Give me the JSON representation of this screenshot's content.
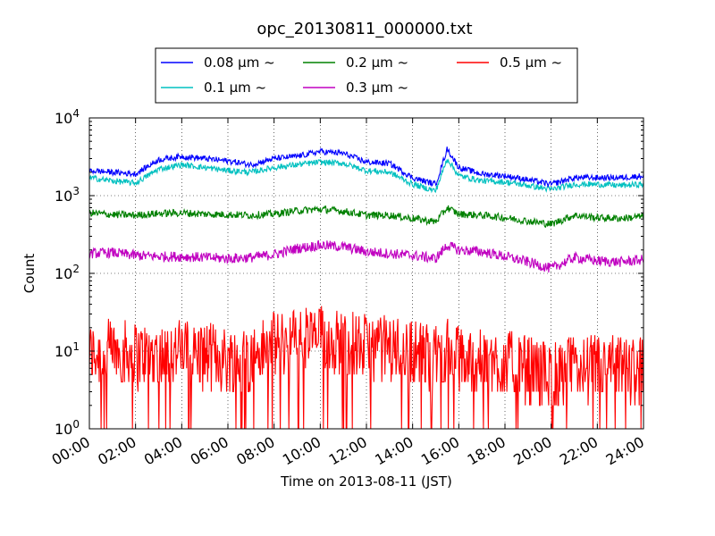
{
  "chart_data": {
    "type": "line",
    "title": "opc_20130811_000000.txt",
    "xlabel": "Time on 2013-08-11 (JST)",
    "ylabel": "Count",
    "yscale": "log",
    "ylim": [
      1,
      10000
    ],
    "xlim": [
      "00:00",
      "24:00"
    ],
    "grid": true,
    "legend_position": "top-center",
    "x_tick_labels": [
      "00:00",
      "02:00",
      "04:00",
      "06:00",
      "08:00",
      "10:00",
      "12:00",
      "14:00",
      "16:00",
      "18:00",
      "20:00",
      "22:00",
      "24:00"
    ],
    "y_tick_labels": [
      {
        "base": "10",
        "exp": "0"
      },
      {
        "base": "10",
        "exp": "1"
      },
      {
        "base": "10",
        "exp": "2"
      },
      {
        "base": "10",
        "exp": "3"
      },
      {
        "base": "10",
        "exp": "4"
      }
    ],
    "x_hours": [
      0,
      1,
      2,
      3,
      4,
      5,
      6,
      7,
      8,
      9,
      10,
      11,
      12,
      13,
      14,
      15,
      15.5,
      16,
      17,
      18,
      19,
      20,
      21,
      22,
      23,
      24
    ],
    "series": [
      {
        "name": "0.08 μm ~",
        "color": "#0000ff",
        "noise": 0.04,
        "values": [
          2100,
          2000,
          1900,
          2900,
          3200,
          3000,
          2800,
          2500,
          3000,
          3200,
          3700,
          3500,
          2700,
          2600,
          1700,
          1400,
          4000,
          2300,
          1900,
          1800,
          1600,
          1400,
          1700,
          1700,
          1700,
          1800
        ]
      },
      {
        "name": "0.1 μm ~",
        "color": "#00c0c0",
        "noise": 0.04,
        "values": [
          1700,
          1550,
          1450,
          2200,
          2500,
          2300,
          2100,
          2000,
          2300,
          2500,
          2700,
          2600,
          2100,
          2000,
          1400,
          1150,
          3000,
          1800,
          1550,
          1500,
          1350,
          1200,
          1400,
          1400,
          1350,
          1400
        ]
      },
      {
        "name": "0.2 μm ~",
        "color": "#008000",
        "noise": 0.05,
        "values": [
          600,
          570,
          560,
          590,
          600,
          580,
          570,
          560,
          580,
          640,
          670,
          630,
          560,
          560,
          510,
          460,
          700,
          580,
          560,
          520,
          470,
          430,
          560,
          520,
          510,
          540
        ]
      },
      {
        "name": "0.3 μm ~",
        "color": "#c000c0",
        "noise": 0.07,
        "values": [
          180,
          185,
          170,
          165,
          165,
          160,
          155,
          160,
          175,
          210,
          230,
          220,
          190,
          180,
          170,
          155,
          230,
          200,
          190,
          165,
          140,
          115,
          160,
          145,
          140,
          150
        ]
      },
      {
        "name": "0.5 μm ~",
        "color": "#ff0000",
        "noise": 0.35,
        "values": [
          9,
          10,
          9,
          9,
          10,
          9,
          8,
          8,
          12,
          14,
          15,
          13,
          11,
          11,
          10,
          8,
          10,
          8,
          7,
          7,
          6,
          5,
          6,
          6,
          6,
          6
        ]
      }
    ]
  }
}
